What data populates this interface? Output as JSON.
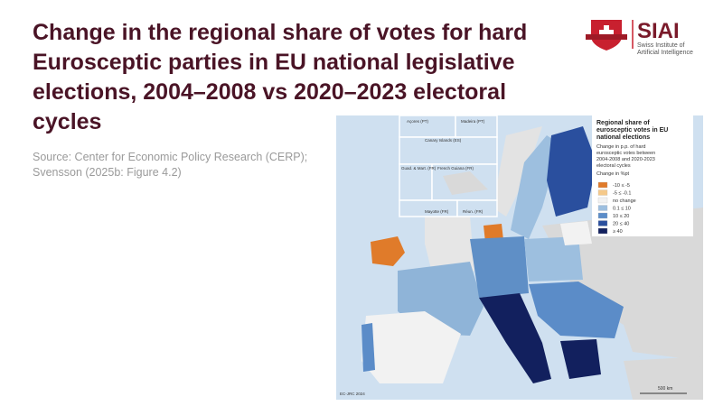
{
  "header": {
    "title": "Change in the regional share of votes for hard Eurosceptic parties in EU national legislative elections, 2004–2008 vs 2020–2023 electoral cycles",
    "source": "Source: Center for Economic Policy Research (CERP); Svensson (2025b: Figure 4.2)"
  },
  "logo": {
    "name": "SIAI",
    "line1": "Swiss Institute of",
    "line2": "Artificial Intelligence"
  },
  "map": {
    "insets": [
      "Açores (PT)",
      "Madeira (PT)",
      "Canary Islands (ES)",
      "Guad. & Mart. (FR)",
      "French Guiana (FR)",
      "Mayotte (FR)",
      "Réun. (FR)"
    ],
    "legend": {
      "title": "Regional share of eurosceptic votes in EU national elections",
      "subtitle": "Change in p.p. of hard eurosceptic votes between 2004-2008 and 2020-2023 electoral cycles",
      "heading": "Change in %pt",
      "items": [
        {
          "label": "-10 ≤ -5",
          "color": "#e07b2a"
        },
        {
          "label": "-5 ≤ -0.1",
          "color": "#f5c98a"
        },
        {
          "label": "no change",
          "color": "#f2f2f2"
        },
        {
          "label": "0.1 ≤ 10",
          "color": "#9dbfdf"
        },
        {
          "label": "10 ≤ 20",
          "color": "#5b8cc8"
        },
        {
          "label": "20 ≤ 40",
          "color": "#2a4f9e"
        },
        {
          "label": "≥ 40",
          "color": "#12205e"
        }
      ]
    },
    "scale": "500 km",
    "credit": "EC-JRC 2024"
  }
}
